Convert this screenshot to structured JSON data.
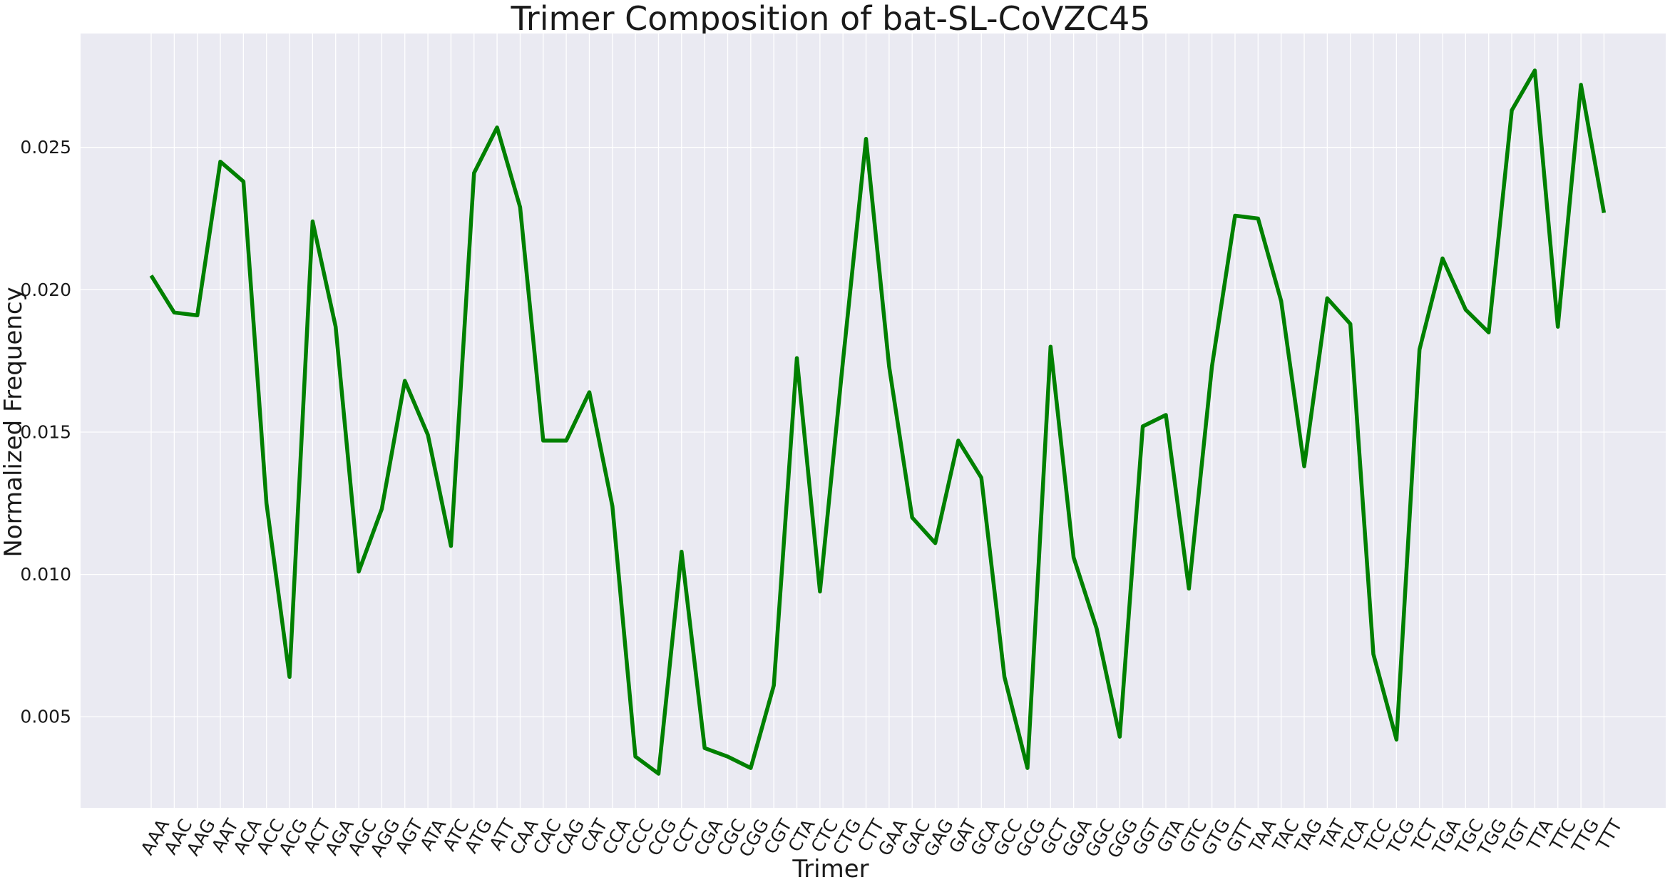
{
  "chart_data": {
    "type": "line",
    "title": "Trimer Composition of bat-SL-CoVZC45",
    "xlabel": "Trimer",
    "ylabel": "Normalized Frequency",
    "ylim": [
      0.0018,
      0.029
    ],
    "yticks": [
      0.005,
      0.01,
      0.015,
      0.02,
      0.025
    ],
    "ytick_labels": [
      "0.005",
      "0.010",
      "0.015",
      "0.020",
      "0.025"
    ],
    "grid": true,
    "background_color": "#eaeaf2",
    "line_color": "#008000",
    "categories": [
      "AAA",
      "AAC",
      "AAG",
      "AAT",
      "ACA",
      "ACC",
      "ACG",
      "ACT",
      "AGA",
      "AGC",
      "AGG",
      "AGT",
      "ATA",
      "ATC",
      "ATG",
      "ATT",
      "CAA",
      "CAC",
      "CAG",
      "CAT",
      "CCA",
      "CCC",
      "CCG",
      "CCT",
      "CGA",
      "CGC",
      "CGG",
      "CGT",
      "CTA",
      "CTC",
      "CTG",
      "CTT",
      "GAA",
      "GAC",
      "GAG",
      "GAT",
      "GCA",
      "GCC",
      "GCG",
      "GCT",
      "GGA",
      "GGC",
      "GGG",
      "GGT",
      "GTA",
      "GTC",
      "GTG",
      "GTT",
      "TAA",
      "TAC",
      "TAG",
      "TAT",
      "TCA",
      "TCC",
      "TCG",
      "TCT",
      "TGA",
      "TGC",
      "TGG",
      "TGT",
      "TTA",
      "TTC",
      "TTG",
      "TTT"
    ],
    "series": [
      {
        "values": [
          0.0205,
          0.0192,
          0.0191,
          0.0245,
          0.0238,
          0.0125,
          0.0064,
          0.0224,
          0.0187,
          0.0101,
          0.0123,
          0.0168,
          0.0149,
          0.011,
          0.0241,
          0.0257,
          0.0229,
          0.0147,
          0.0147,
          0.0164,
          0.0124,
          0.0036,
          0.003,
          0.0108,
          0.0039,
          0.0036,
          0.0032,
          0.0061,
          0.0176,
          0.0094,
          0.0175,
          0.0253,
          0.0173,
          0.012,
          0.0111,
          0.0147,
          0.0134,
          0.0064,
          0.0032,
          0.018,
          0.0106,
          0.0081,
          0.0043,
          0.0152,
          0.0156,
          0.0095,
          0.0173,
          0.0226,
          0.0225,
          0.0196,
          0.0138,
          0.0197,
          0.0188,
          0.0072,
          0.0042,
          0.0179,
          0.0211,
          0.0193,
          0.0185,
          0.0263,
          0.0277,
          0.0187,
          0.0272,
          0.0227
        ]
      }
    ]
  }
}
